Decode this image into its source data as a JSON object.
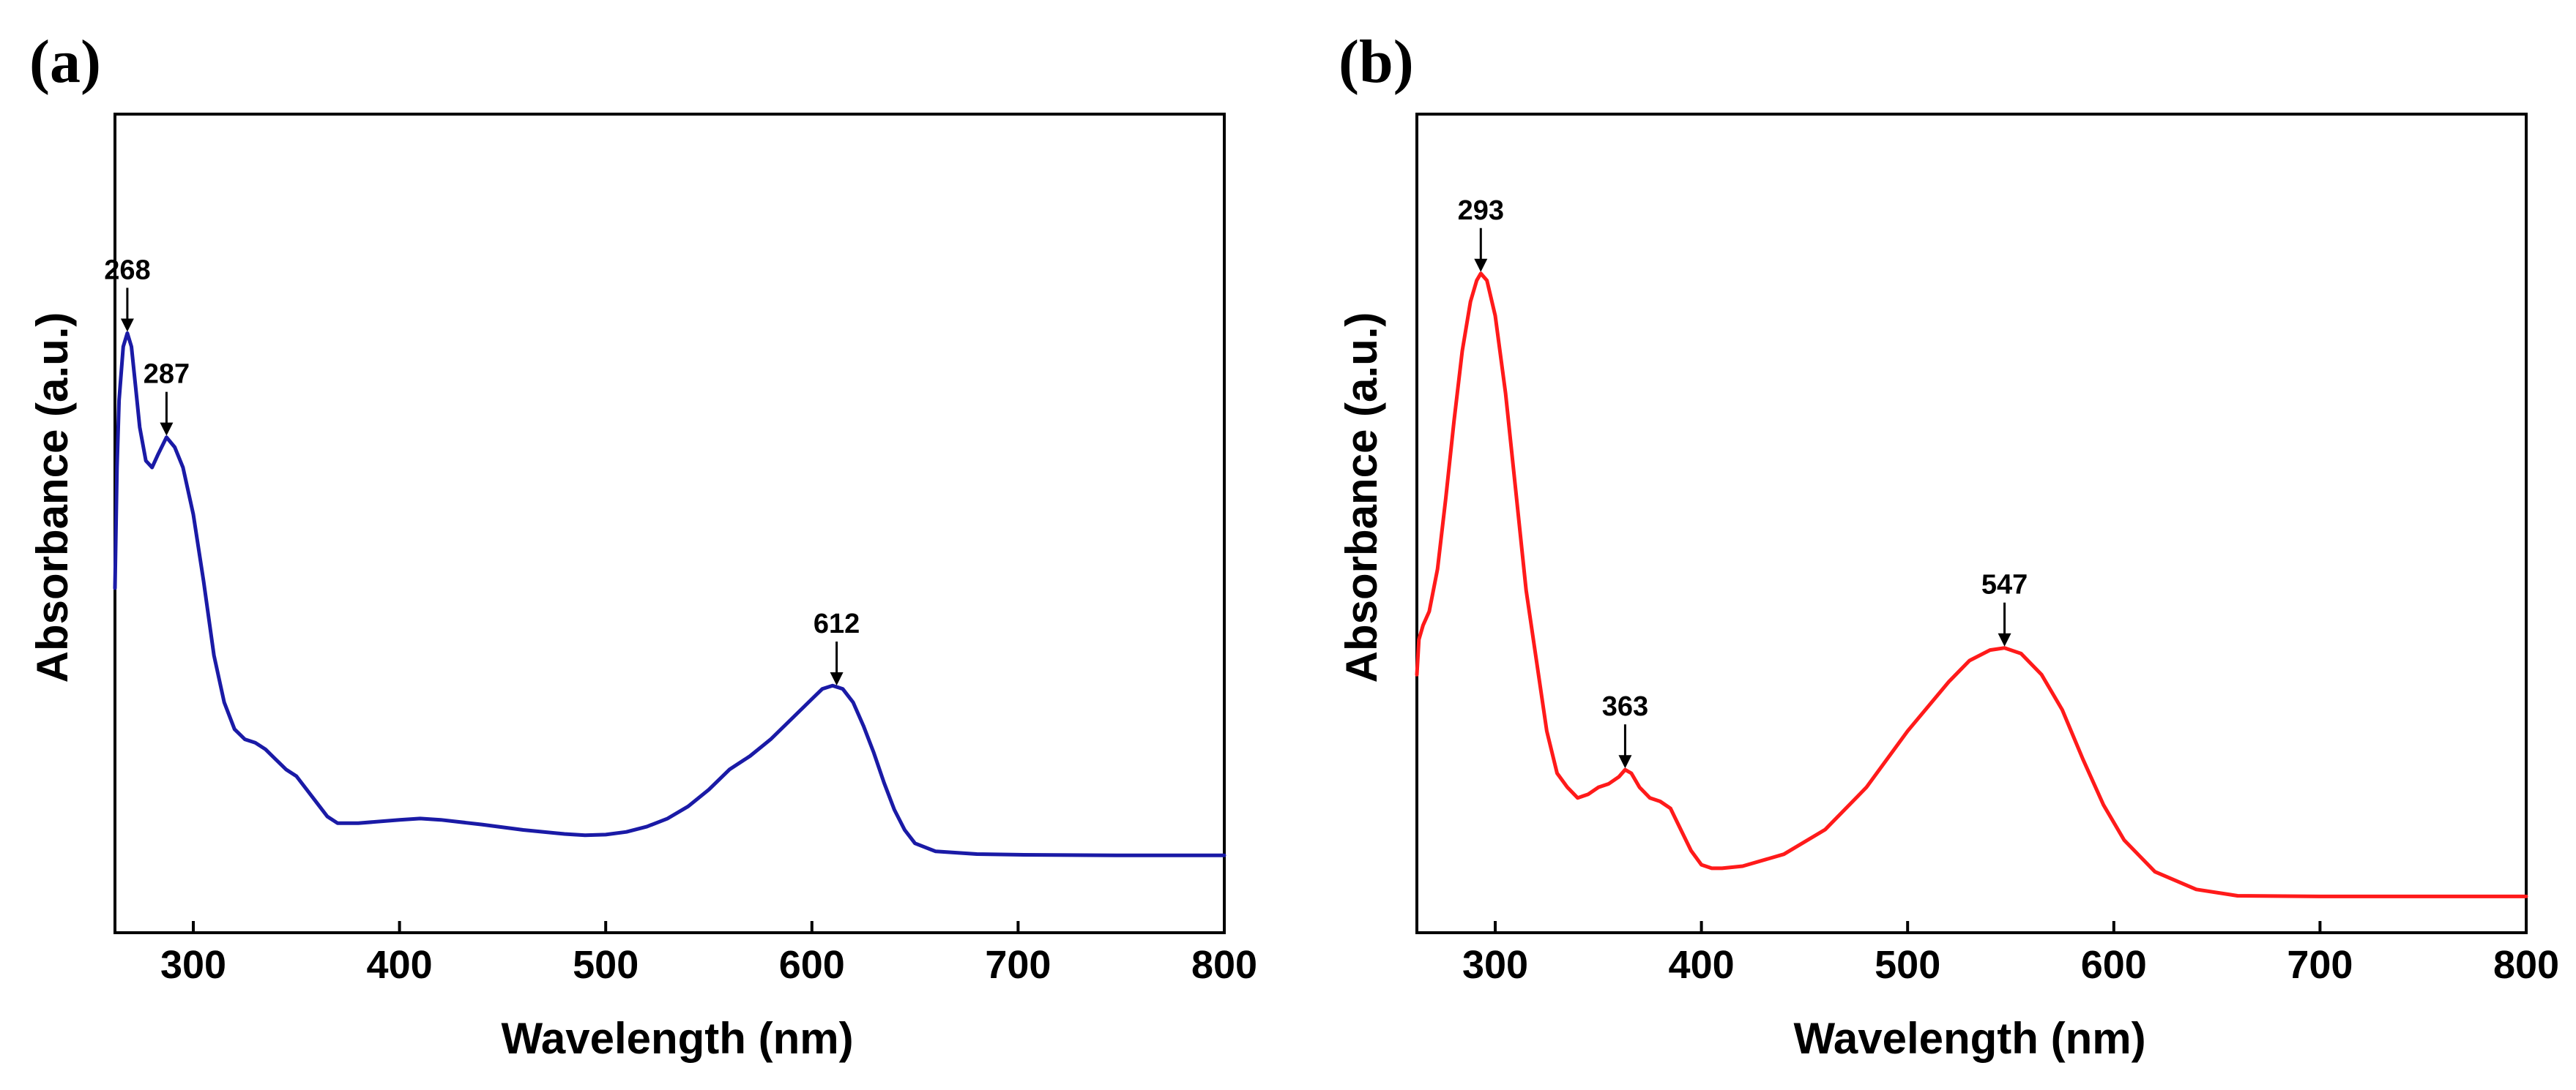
{
  "chart_data": [
    {
      "type": "line",
      "panel_label": "(a)",
      "xlabel": "Wavelength (nm)",
      "ylabel": "Absorbance (a.u.)",
      "xlim": [
        262,
        800
      ],
      "ylim": [
        0,
        1
      ],
      "xticks": [
        300,
        400,
        500,
        600,
        700,
        800
      ],
      "yticks_shown": false,
      "grid": false,
      "series": [
        {
          "name": "Absorbance",
          "color": "#1a1aa6",
          "x": [
            262,
            263,
            264,
            266,
            268,
            270,
            272,
            274,
            277,
            280,
            283,
            287,
            291,
            295,
            300,
            305,
            310,
            315,
            320,
            325,
            330,
            335,
            340,
            345,
            350,
            355,
            360,
            365,
            370,
            380,
            400,
            410,
            420,
            440,
            460,
            480,
            490,
            500,
            510,
            520,
            530,
            540,
            550,
            560,
            570,
            580,
            590,
            600,
            605,
            610,
            615,
            620,
            625,
            630,
            635,
            640,
            645,
            650,
            660,
            680,
            700,
            750,
            800
          ],
          "values": [
            0.44,
            0.62,
            0.72,
            0.8,
            0.82,
            0.8,
            0.74,
            0.68,
            0.63,
            0.62,
            0.64,
            0.665,
            0.65,
            0.62,
            0.55,
            0.45,
            0.34,
            0.27,
            0.23,
            0.215,
            0.21,
            0.2,
            0.185,
            0.17,
            0.16,
            0.14,
            0.12,
            0.1,
            0.09,
            0.09,
            0.095,
            0.097,
            0.095,
            0.088,
            0.08,
            0.074,
            0.072,
            0.073,
            0.077,
            0.085,
            0.097,
            0.115,
            0.14,
            0.17,
            0.19,
            0.215,
            0.245,
            0.275,
            0.29,
            0.295,
            0.29,
            0.27,
            0.235,
            0.195,
            0.15,
            0.11,
            0.08,
            0.06,
            0.048,
            0.044,
            0.043,
            0.042,
            0.042
          ]
        }
      ],
      "annotations": [
        {
          "label": "268",
          "x": 268
        },
        {
          "label": "287",
          "x": 287
        },
        {
          "label": "612",
          "x": 612
        }
      ]
    },
    {
      "type": "line",
      "panel_label": "(b)",
      "xlabel": "Wavelength (nm)",
      "ylabel": "Absorbance (a.u.)",
      "xlim": [
        262,
        800
      ],
      "ylim": [
        0,
        1
      ],
      "xticks": [
        300,
        400,
        500,
        600,
        700,
        800
      ],
      "yticks_shown": false,
      "grid": false,
      "series": [
        {
          "name": "Absorbance",
          "color": "#ff1a1a",
          "x": [
            262,
            263,
            265,
            268,
            272,
            276,
            280,
            284,
            288,
            291,
            293,
            296,
            300,
            305,
            310,
            315,
            320,
            325,
            330,
            335,
            340,
            345,
            350,
            355,
            360,
            363,
            366,
            370,
            375,
            380,
            385,
            390,
            395,
            400,
            405,
            410,
            420,
            440,
            460,
            480,
            500,
            520,
            530,
            540,
            547,
            555,
            565,
            575,
            585,
            595,
            605,
            620,
            640,
            660,
            700,
            750,
            800
          ],
          "values": [
            0.32,
            0.37,
            0.39,
            0.41,
            0.47,
            0.57,
            0.68,
            0.78,
            0.85,
            0.88,
            0.89,
            0.88,
            0.83,
            0.72,
            0.58,
            0.44,
            0.34,
            0.24,
            0.18,
            0.16,
            0.145,
            0.15,
            0.16,
            0.165,
            0.175,
            0.185,
            0.18,
            0.16,
            0.145,
            0.14,
            0.13,
            0.1,
            0.07,
            0.05,
            0.045,
            0.045,
            0.048,
            0.065,
            0.1,
            0.16,
            0.24,
            0.31,
            0.34,
            0.355,
            0.358,
            0.35,
            0.32,
            0.27,
            0.2,
            0.135,
            0.085,
            0.04,
            0.015,
            0.006,
            0.005,
            0.005,
            0.005
          ]
        }
      ],
      "annotations": [
        {
          "label": "293",
          "x": 293
        },
        {
          "label": "363",
          "x": 363
        },
        {
          "label": "547",
          "x": 547
        }
      ]
    }
  ]
}
